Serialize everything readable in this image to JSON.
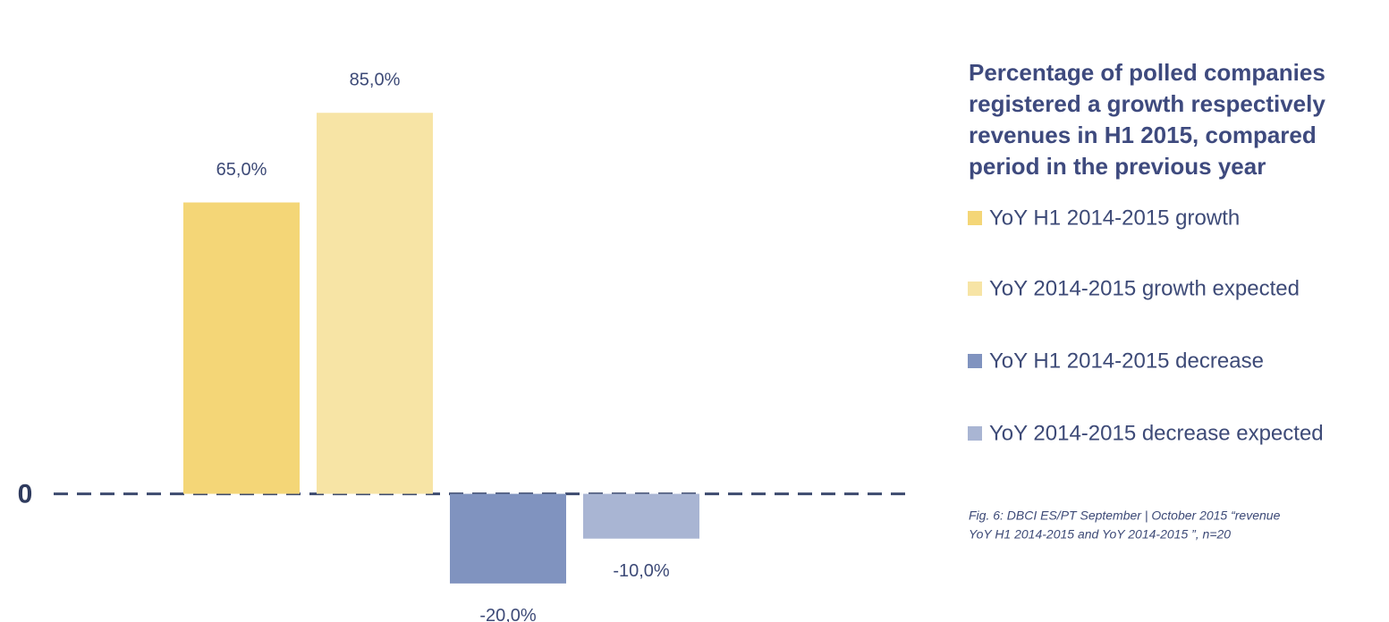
{
  "chart_data": {
    "type": "bar",
    "title": [
      "Percentage of polled companies",
      "registered a growth respectively",
      "revenues in H1 2015, compared",
      "period in the  previous year"
    ],
    "note": [
      "Fig. 6: DBCI ES/PT  September | October  2015 “revenue",
      "YoY H1 2014-2015 and YoY 2014-2015 ”,  n=20"
    ],
    "series": [
      {
        "name": "YoY H1 2014-2015 growth",
        "color": "#f4d677",
        "values": [
          65
        ],
        "value_labels": [
          "65,0%"
        ]
      },
      {
        "name": "YoY 2014-2015 growth expected",
        "color": "#f7e4a5",
        "values": [
          85
        ],
        "value_labels": [
          "85,0%"
        ]
      },
      {
        "name": "YoY H1 2014-2015 decrease",
        "color": "#8093bf",
        "values": [
          -20
        ],
        "value_labels": [
          "-20,0%"
        ]
      },
      {
        "name": "YoY 2014-2015 decrease expected",
        "color": "#a9b5d3",
        "values": [
          -10
        ],
        "value_labels": [
          "-10,0%"
        ]
      }
    ],
    "ylim": [
      -28,
      100
    ],
    "yticks": [
      0
    ],
    "legend": "right"
  }
}
